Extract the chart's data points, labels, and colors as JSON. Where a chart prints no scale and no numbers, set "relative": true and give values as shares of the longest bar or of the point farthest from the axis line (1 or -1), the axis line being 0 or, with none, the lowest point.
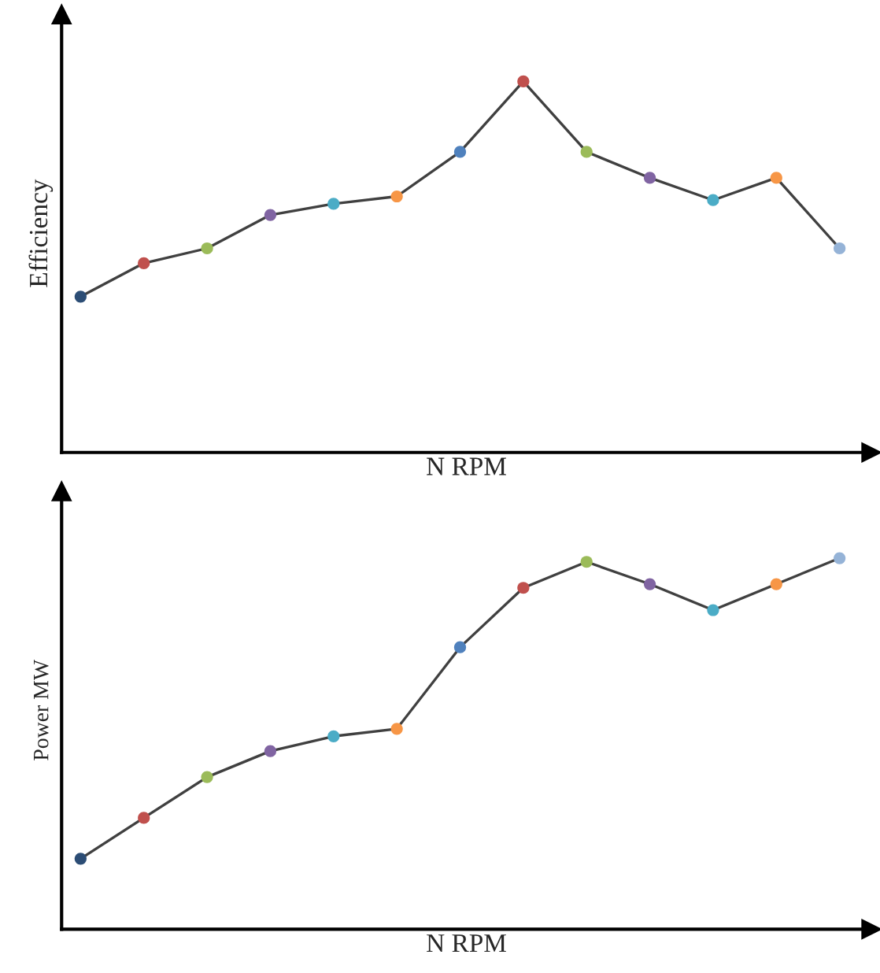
{
  "chart_data": [
    {
      "type": "line",
      "relative": true,
      "xlabel": "N RPM",
      "ylabel": "Efficiency",
      "categories": [
        null,
        null,
        null,
        null,
        null,
        null,
        null,
        null,
        null,
        null,
        null,
        null,
        null
      ],
      "marker": "circle",
      "legend": false,
      "series": [
        {
          "color": "#404040",
          "colors": [
            "#2c4d75",
            "#c0504d",
            "#9bbb59",
            "#8064a2",
            "#4bacc6",
            "#f79646",
            "#4f81bd",
            "#c0504d",
            "#9bbb59",
            "#8064a2",
            "#4bacc6",
            "#f79646",
            "#95b3d7"
          ],
          "values": [
            0.42,
            0.51,
            0.55,
            0.64,
            0.67,
            0.69,
            0.81,
            1.0,
            0.81,
            0.74,
            0.68,
            0.74,
            0.55
          ]
        }
      ]
    },
    {
      "type": "line",
      "relative": true,
      "xlabel": "N RPM",
      "ylabel": "Power MW",
      "categories": [
        null,
        null,
        null,
        null,
        null,
        null,
        null,
        null,
        null,
        null,
        null,
        null,
        null
      ],
      "marker": "circle",
      "legend": false,
      "series": [
        {
          "color": "#404040",
          "colors": [
            "#2c4d75",
            "#c0504d",
            "#9bbb59",
            "#8064a2",
            "#4bacc6",
            "#f79646",
            "#4f81bd",
            "#c0504d",
            "#9bbb59",
            "#8064a2",
            "#4bacc6",
            "#f79646",
            "#95b3d7"
          ],
          "values": [
            0.19,
            0.3,
            0.41,
            0.48,
            0.52,
            0.54,
            0.76,
            0.92,
            0.99,
            0.93,
            0.86,
            0.93,
            1.0
          ]
        }
      ]
    }
  ]
}
